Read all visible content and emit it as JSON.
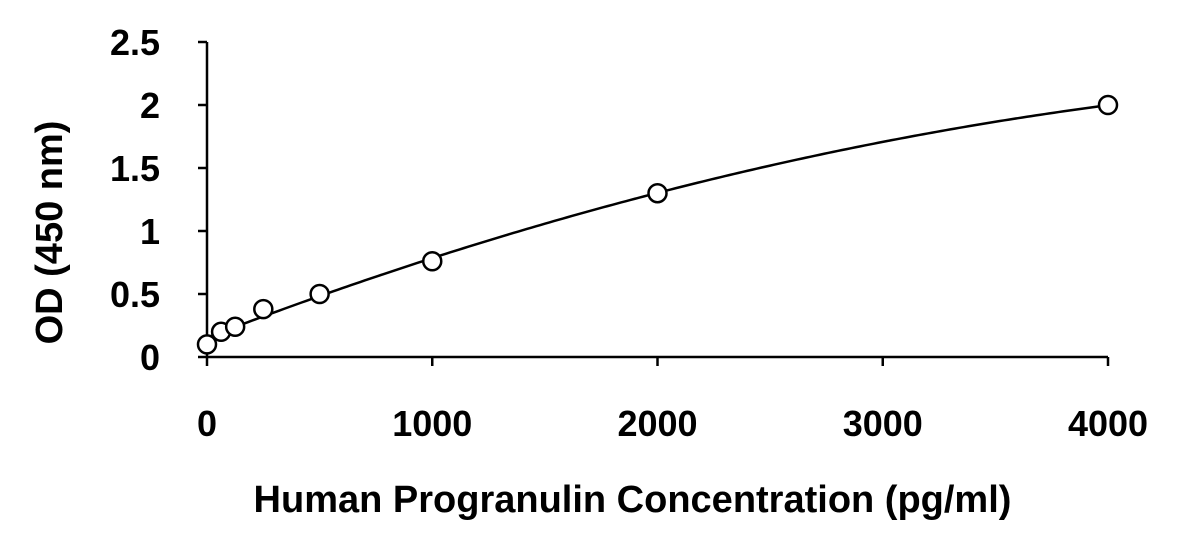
{
  "chart_data": {
    "type": "scatter",
    "title": "",
    "xlabel": "Human Progranulin Concentration (pg/ml)",
    "ylabel": "OD (450 nm)",
    "xlim": [
      0,
      4000
    ],
    "ylim": [
      0,
      2.5
    ],
    "x_ticks": [
      0,
      1000,
      2000,
      3000,
      4000
    ],
    "x_tick_labels": [
      "0",
      "1000",
      "2000",
      "3000",
      "4000"
    ],
    "y_ticks": [
      0,
      0.5,
      1,
      1.5,
      2,
      2.5
    ],
    "y_tick_labels": [
      "0",
      "0.5",
      "1",
      "1.5",
      "2",
      "2.5"
    ],
    "grid": false,
    "legend": "none",
    "series": [
      {
        "marker": "open-circle",
        "fit_line": "smooth-curve",
        "x": [
          0,
          62.5,
          125,
          250,
          500,
          1000,
          2000,
          4000
        ],
        "y": [
          0.1,
          0.2,
          0.24,
          0.38,
          0.5,
          0.76,
          1.3,
          2.0
        ]
      }
    ]
  }
}
